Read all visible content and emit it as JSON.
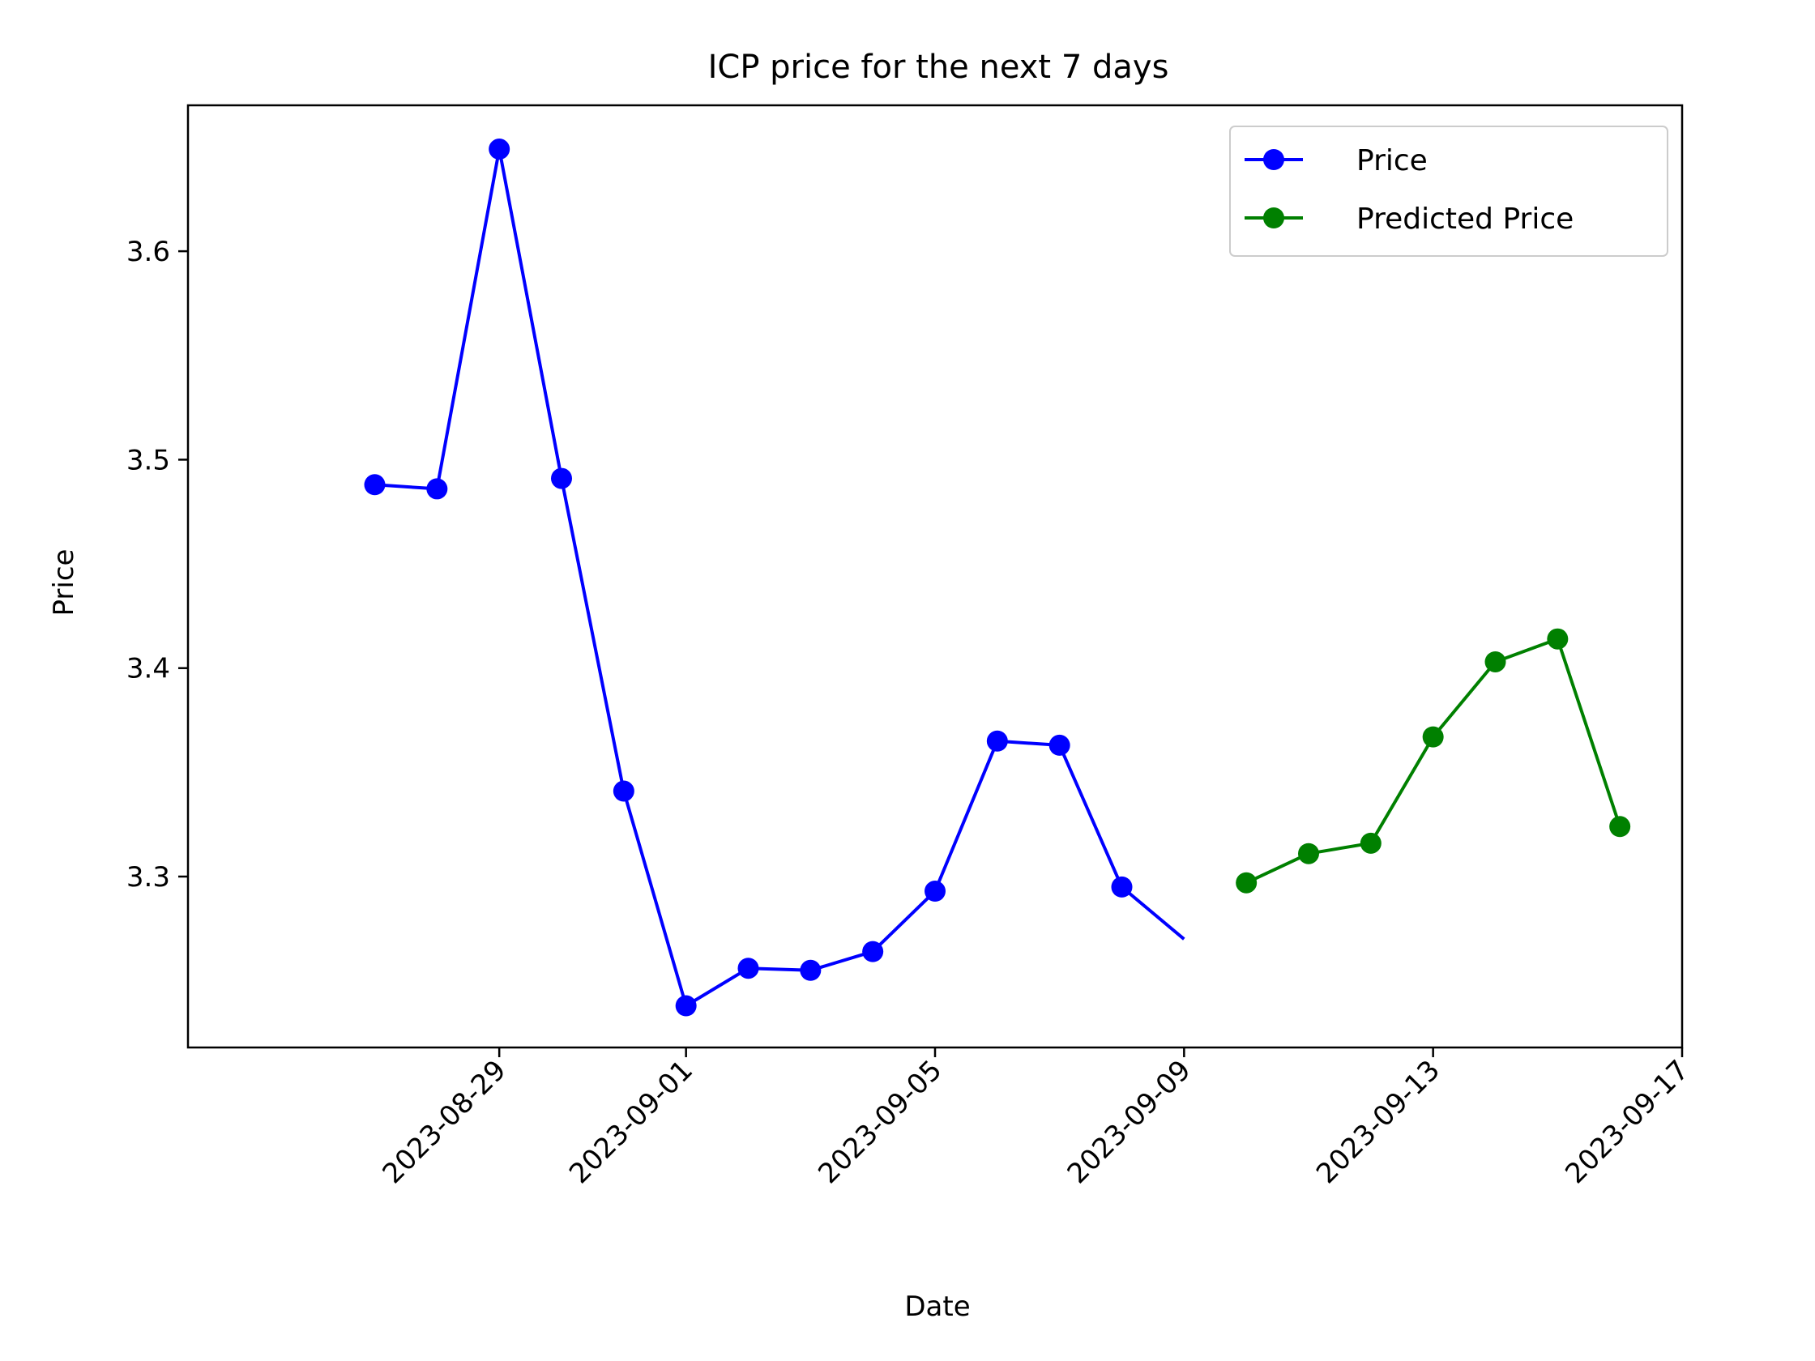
{
  "chart_data": {
    "type": "line",
    "title": "ICP price for the next 7 days",
    "xlabel": "Date",
    "ylabel": "Price",
    "x_ticks": [
      "2023-08-29",
      "2023-09-01",
      "2023-09-05",
      "2023-09-09",
      "2023-09-13",
      "2023-09-17"
    ],
    "y_ticks": [
      3.3,
      3.4,
      3.5,
      3.6
    ],
    "y_tick_labels": [
      "3.3",
      "3.4",
      "3.5",
      "3.6"
    ],
    "xlim": [
      "2023-08-24",
      "2023-09-17"
    ],
    "ylim": [
      3.218,
      3.67
    ],
    "grid": false,
    "legend_position": "top-right",
    "series": [
      {
        "name": "Price",
        "color": "#0000ff",
        "x": [
          "2023-08-27",
          "2023-08-28",
          "2023-08-29",
          "2023-08-30",
          "2023-08-31",
          "2023-09-01",
          "2023-09-02",
          "2023-09-03",
          "2023-09-04",
          "2023-09-05",
          "2023-09-06",
          "2023-09-07",
          "2023-09-08",
          "2023-09-09"
        ],
        "values": [
          3.488,
          3.486,
          3.649,
          3.491,
          3.341,
          3.238,
          3.256,
          3.255,
          3.264,
          3.293,
          3.365,
          3.363,
          3.295,
          3.27
        ],
        "markers": [
          true,
          true,
          true,
          true,
          true,
          true,
          true,
          true,
          true,
          true,
          true,
          true,
          true,
          false
        ]
      },
      {
        "name": "Predicted Price",
        "color": "#008000",
        "x": [
          "2023-09-10",
          "2023-09-11",
          "2023-09-12",
          "2023-09-13",
          "2023-09-14",
          "2023-09-15",
          "2023-09-16"
        ],
        "values": [
          3.297,
          3.311,
          3.316,
          3.367,
          3.403,
          3.414,
          3.324
        ],
        "markers": [
          true,
          true,
          true,
          true,
          true,
          true,
          true
        ]
      }
    ]
  }
}
